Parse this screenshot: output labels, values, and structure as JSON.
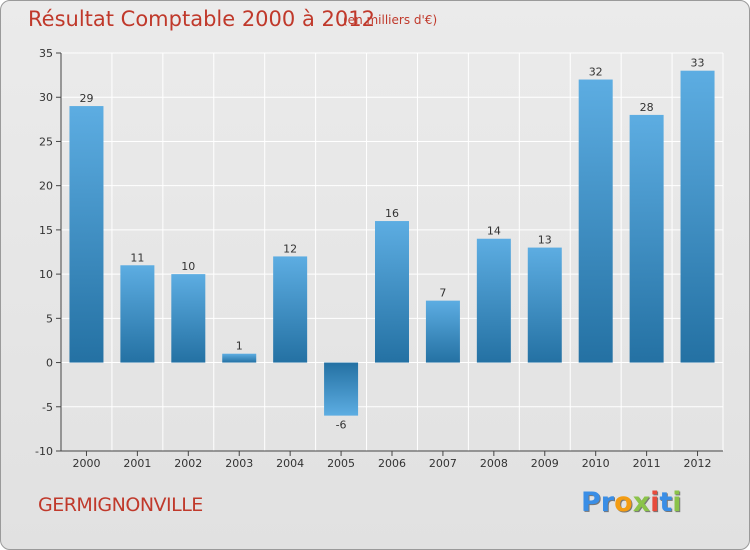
{
  "header": {
    "title": "Résultat Comptable 2000 à 2012",
    "subtitle": "(en milliers d'€)"
  },
  "footer": {
    "town": "GERMIGNONVILLE",
    "logo_letters": [
      {
        "char": "P",
        "color": "#3a8ee6"
      },
      {
        "char": "r",
        "color": "#3a8ee6"
      },
      {
        "char": "o",
        "color": "#f39c12"
      },
      {
        "char": "x",
        "color": "#8bc34a"
      },
      {
        "char": "i",
        "color": "#e74c3c"
      },
      {
        "char": "t",
        "color": "#3a8ee6"
      },
      {
        "char": "i",
        "color": "#8bc34a"
      }
    ]
  },
  "colors": {
    "bar_light": "#5dade2",
    "bar_dark": "#2471a3",
    "grid": "#ffffff",
    "axis": "#444444"
  },
  "chart_data": {
    "type": "bar",
    "title": "Résultat Comptable 2000 à 2012",
    "subtitle": "(en milliers d'€)",
    "xlabel": "",
    "ylabel": "",
    "categories": [
      "2000",
      "2001",
      "2002",
      "2003",
      "2004",
      "2005",
      "2006",
      "2007",
      "2008",
      "2009",
      "2010",
      "2011",
      "2012"
    ],
    "values": [
      29,
      11,
      10,
      1,
      12,
      -6,
      16,
      7,
      14,
      13,
      32,
      28,
      33
    ],
    "data_labels": [
      "29",
      "11",
      "10",
      "1",
      "12",
      "-6",
      "16",
      "7",
      "14",
      "13",
      "32",
      "28",
      "33"
    ],
    "ylim": [
      -10,
      35
    ],
    "yticks": [
      -10,
      -5,
      0,
      5,
      10,
      15,
      20,
      25,
      30,
      35
    ],
    "ytick_labels": [
      "-10",
      "-5",
      "0",
      "5",
      "10",
      "15",
      "20",
      "25",
      "30",
      "35"
    ],
    "grid": true,
    "legend": "none"
  }
}
